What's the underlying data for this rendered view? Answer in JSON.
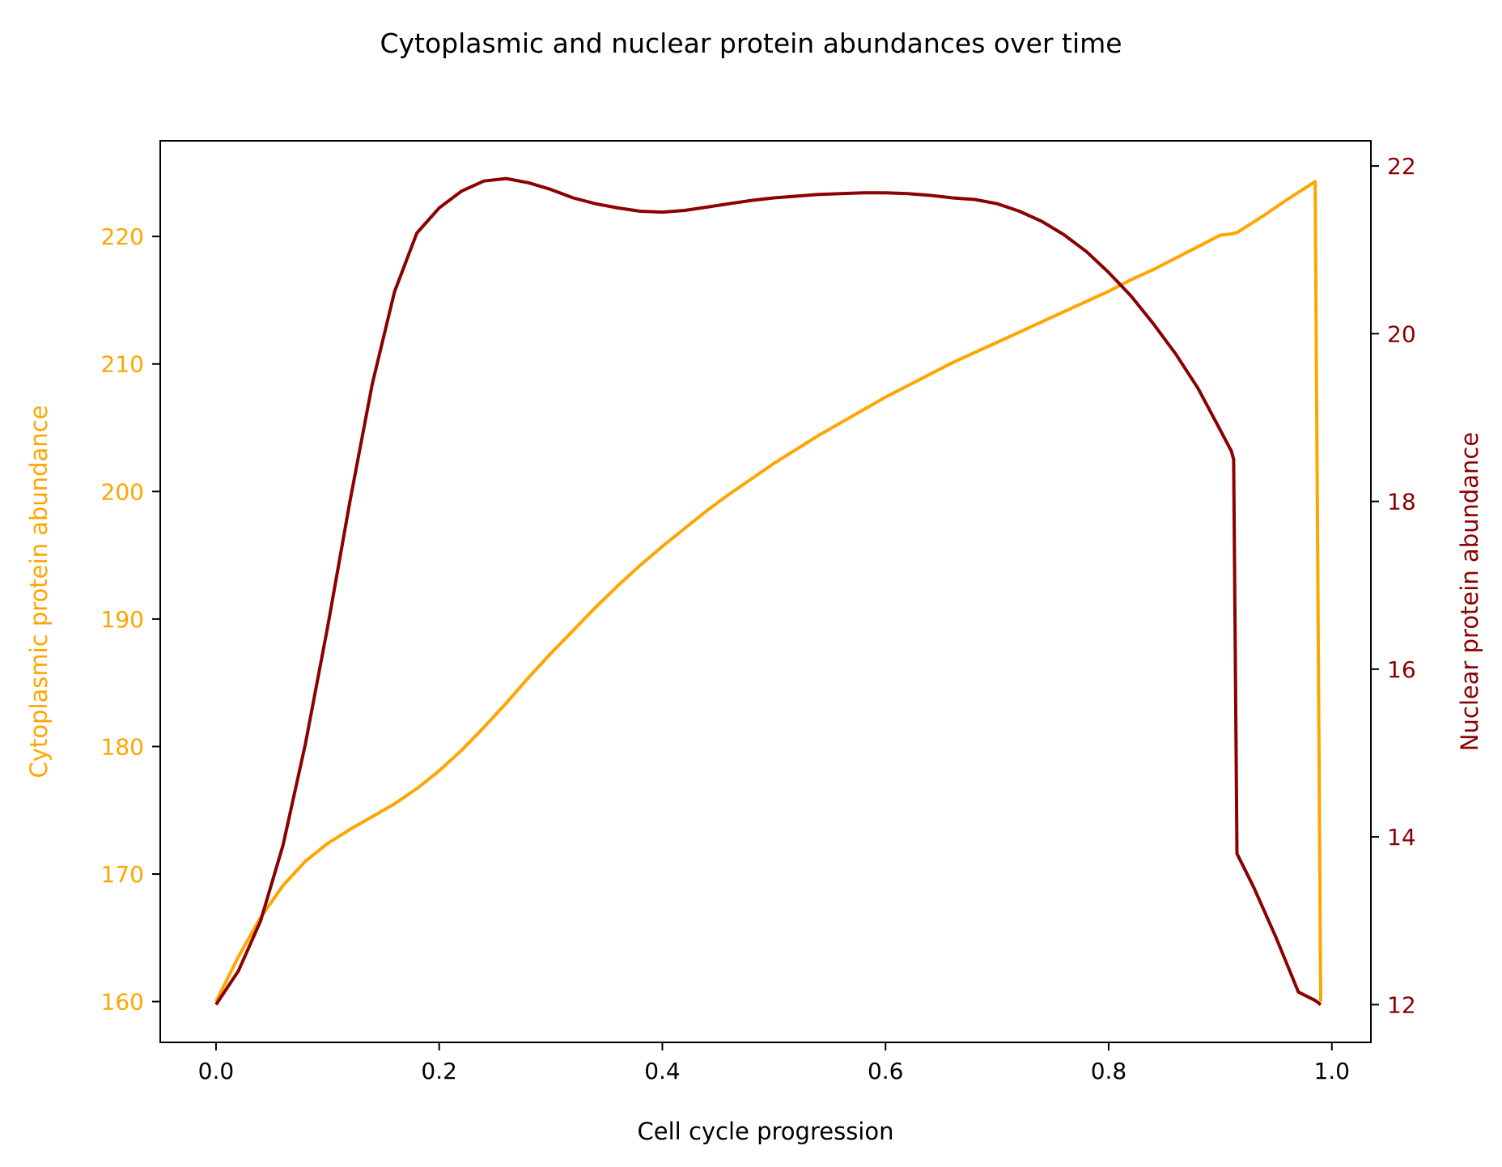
{
  "chart_data": {
    "type": "line",
    "title": "Cytoplasmic and nuclear protein abundances over time",
    "xlabel": "Cell cycle progression",
    "ylabel_left": "Cytoplasmic protein abundance",
    "ylabel_right": "Nuclear protein abundance",
    "xlim": [
      -0.05,
      1.035
    ],
    "ylim_left": [
      156.8,
      227.5
    ],
    "ylim_right": [
      11.55,
      22.3
    ],
    "x_ticks": [
      {
        "value": 0.0,
        "label": "0.0"
      },
      {
        "value": 0.2,
        "label": "0.2"
      },
      {
        "value": 0.4,
        "label": "0.4"
      },
      {
        "value": 0.6,
        "label": "0.6"
      },
      {
        "value": 0.8,
        "label": "0.8"
      },
      {
        "value": 1.0,
        "label": "1.0"
      }
    ],
    "y_left_ticks": [
      {
        "value": 160,
        "label": "160"
      },
      {
        "value": 170,
        "label": "170"
      },
      {
        "value": 180,
        "label": "180"
      },
      {
        "value": 190,
        "label": "190"
      },
      {
        "value": 200,
        "label": "200"
      },
      {
        "value": 210,
        "label": "210"
      },
      {
        "value": 220,
        "label": "220"
      }
    ],
    "y_right_ticks": [
      {
        "value": 12,
        "label": "12"
      },
      {
        "value": 14,
        "label": "14"
      },
      {
        "value": 16,
        "label": "16"
      },
      {
        "value": 18,
        "label": "18"
      },
      {
        "value": 20,
        "label": "20"
      },
      {
        "value": 22,
        "label": "22"
      }
    ],
    "grid": false,
    "colors": {
      "cytoplasmic": "#ffa500",
      "nuclear": "#8b0000",
      "axes": "#000000"
    },
    "series": [
      {
        "axis": "left",
        "x": [
          0,
          0.02,
          0.04,
          0.06,
          0.08,
          0.1,
          0.12,
          0.14,
          0.16,
          0.18,
          0.2,
          0.22,
          0.24,
          0.26,
          0.28,
          0.3,
          0.32,
          0.34,
          0.36,
          0.38,
          0.4,
          0.42,
          0.44,
          0.46,
          0.48,
          0.5,
          0.52,
          0.54,
          0.56,
          0.58,
          0.6,
          0.62,
          0.64,
          0.66,
          0.68,
          0.7,
          0.72,
          0.74,
          0.76,
          0.78,
          0.8,
          0.82,
          0.84,
          0.86,
          0.88,
          0.9,
          0.91,
          0.915,
          0.94,
          0.96,
          0.985,
          0.99
        ],
        "values": [
          160.0,
          163.5,
          166.6,
          169.1,
          171.0,
          172.4,
          173.5,
          174.5,
          175.5,
          176.7,
          178.1,
          179.7,
          181.5,
          183.4,
          185.4,
          187.3,
          189.1,
          190.9,
          192.6,
          194.2,
          195.7,
          197.1,
          198.5,
          199.8,
          201.0,
          202.2,
          203.3,
          204.4,
          205.4,
          206.4,
          207.4,
          208.3,
          209.2,
          210.1,
          210.9,
          211.7,
          212.5,
          213.3,
          214.1,
          214.9,
          215.7,
          216.6,
          217.4,
          218.3,
          219.2,
          220.1,
          220.2,
          220.3,
          221.7,
          222.9,
          224.3,
          160.0
        ]
      },
      {
        "axis": "right",
        "x": [
          0,
          0.02,
          0.04,
          0.06,
          0.08,
          0.1,
          0.12,
          0.14,
          0.16,
          0.18,
          0.2,
          0.22,
          0.24,
          0.26,
          0.28,
          0.3,
          0.32,
          0.34,
          0.36,
          0.38,
          0.4,
          0.42,
          0.44,
          0.46,
          0.48,
          0.5,
          0.52,
          0.54,
          0.56,
          0.58,
          0.6,
          0.62,
          0.64,
          0.66,
          0.68,
          0.7,
          0.72,
          0.74,
          0.76,
          0.78,
          0.8,
          0.82,
          0.84,
          0.86,
          0.88,
          0.9,
          0.91,
          0.912,
          0.915,
          0.93,
          0.95,
          0.97,
          0.985,
          0.99
        ],
        "values": [
          12.0,
          12.4,
          13.0,
          13.9,
          15.1,
          16.5,
          18.0,
          19.4,
          20.5,
          21.2,
          21.5,
          21.7,
          21.82,
          21.85,
          21.8,
          21.72,
          21.62,
          21.55,
          21.5,
          21.46,
          21.45,
          21.47,
          21.51,
          21.55,
          21.59,
          21.62,
          21.64,
          21.66,
          21.67,
          21.68,
          21.68,
          21.67,
          21.65,
          21.62,
          21.6,
          21.55,
          21.46,
          21.34,
          21.18,
          20.98,
          20.73,
          20.45,
          20.12,
          19.76,
          19.35,
          18.85,
          18.6,
          18.5,
          13.8,
          13.4,
          12.8,
          12.15,
          12.05,
          12.0
        ]
      }
    ]
  }
}
